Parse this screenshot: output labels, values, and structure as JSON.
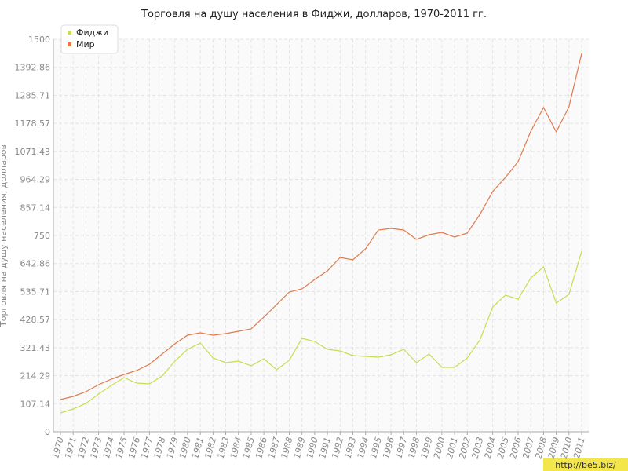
{
  "chart_data": {
    "type": "line",
    "title": "Торговля на душу населения в Фиджи, долларов, 1970-2011 гг.",
    "y_label": "Торговля на душу населения, долларов",
    "categories": [
      "1970",
      "1971",
      "1972",
      "1973",
      "1974",
      "1975",
      "1976",
      "1977",
      "1978",
      "1979",
      "1980",
      "1981",
      "1982",
      "1983",
      "1984",
      "1985",
      "1986",
      "1987",
      "1988",
      "1989",
      "1990",
      "1991",
      "1992",
      "1993",
      "1994",
      "1995",
      "1996",
      "1997",
      "1998",
      "1999",
      "2000",
      "2001",
      "2002",
      "2003",
      "2004",
      "2005",
      "2006",
      "2007",
      "2008",
      "2009",
      "2010",
      "2011"
    ],
    "series": [
      {
        "name": "Фиджи",
        "color": "#c8dc50",
        "values": [
          72,
          87,
          108,
          144,
          177,
          207,
          186,
          183,
          213,
          270,
          315,
          339,
          282,
          264,
          270,
          252,
          279,
          237,
          273,
          357,
          345,
          315,
          309,
          291,
          288,
          285,
          294,
          315,
          264,
          297,
          246,
          246,
          282,
          351,
          477,
          522,
          507,
          588,
          630,
          492,
          525,
          690
        ]
      },
      {
        "name": "Мир",
        "color": "#e07a4c",
        "values": [
          123,
          135,
          153,
          180,
          201,
          219,
          234,
          258,
          297,
          336,
          369,
          378,
          369,
          375,
          384,
          393,
          438,
          486,
          534,
          546,
          582,
          615,
          666,
          657,
          699,
          771,
          777,
          771,
          735,
          753,
          762,
          744,
          759,
          831,
          918,
          972,
          1032,
          1149,
          1239,
          1146,
          1242,
          1446
        ]
      }
    ],
    "ylim": [
      0,
      1500
    ],
    "yticks": [
      0,
      107.14,
      214.29,
      321.43,
      428.57,
      535.71,
      642.86,
      750,
      857.14,
      964.29,
      1071.43,
      1178.57,
      1285.71,
      1392.86,
      1500
    ],
    "grid": true,
    "legend": "top-left",
    "watermark": "http://be5.biz/"
  }
}
